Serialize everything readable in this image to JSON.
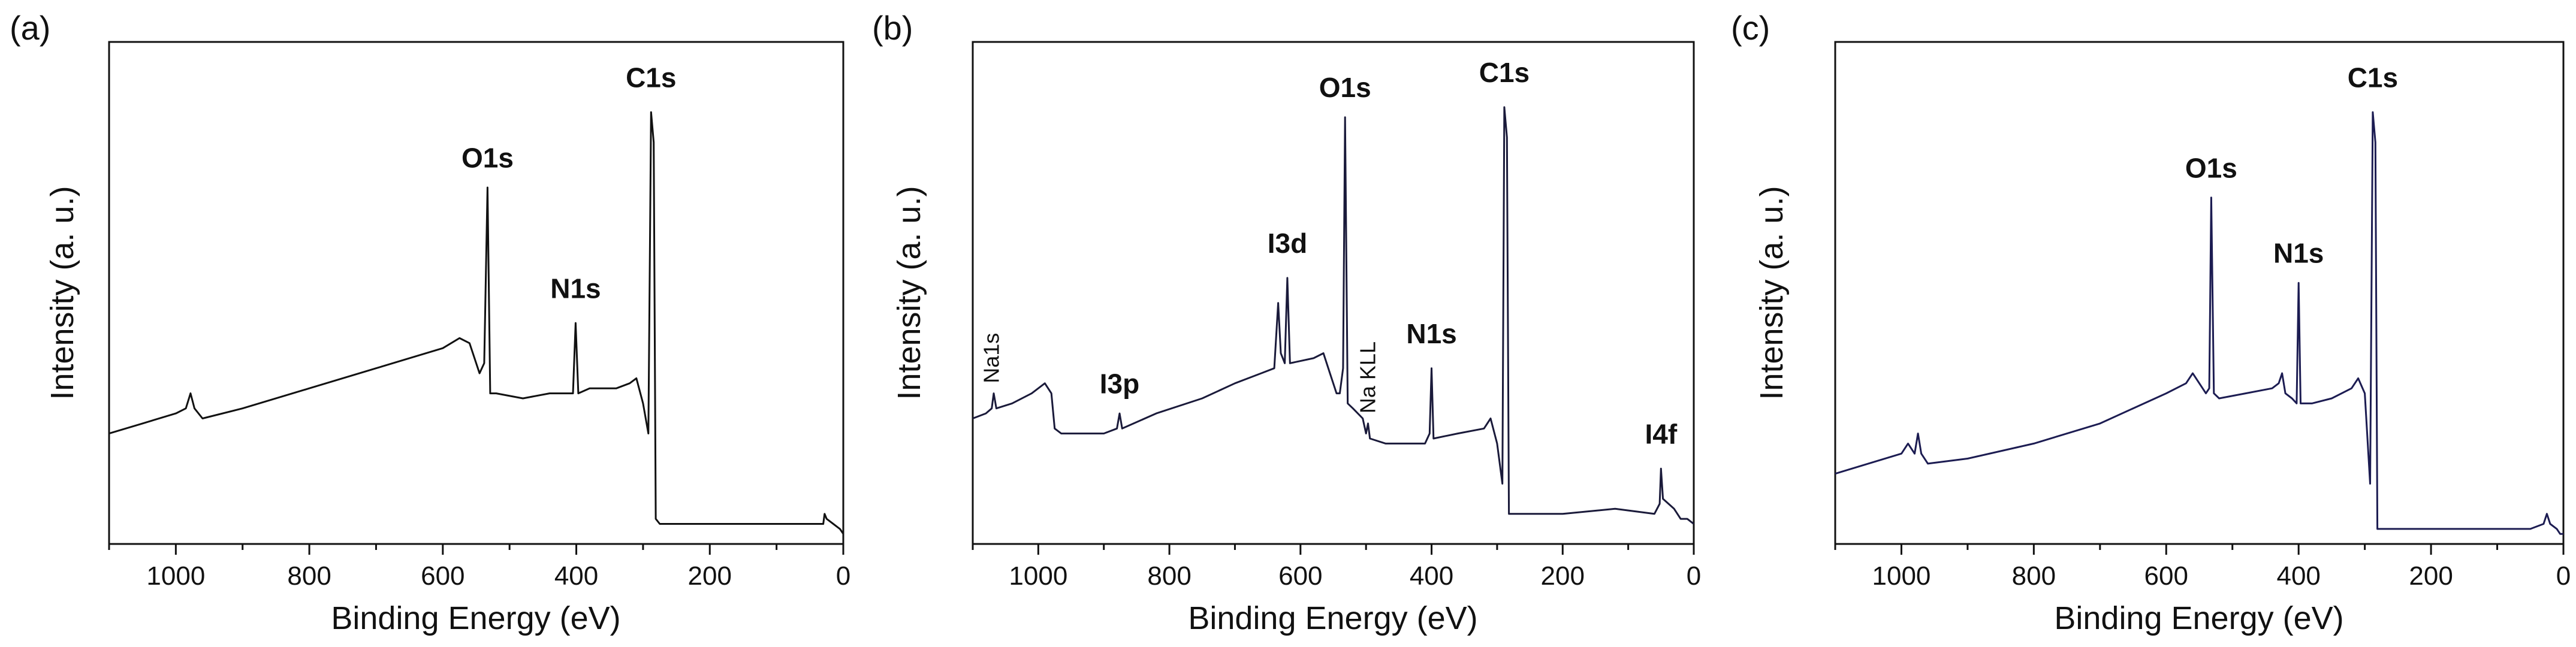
{
  "chart_data": [
    {
      "panel_label": "(a)",
      "type": "line",
      "xlabel": "Binding Energy (eV)",
      "ylabel": "Intensity (a. u.)",
      "xlim": [
        1100,
        0
      ],
      "x_reversed": true,
      "ylim": [
        0,
        100
      ],
      "y_ticks_shown": false,
      "xticks": [
        "1000",
        "800",
        "600",
        "400",
        "200",
        "0"
      ],
      "xtick_values": [
        1000,
        800,
        600,
        400,
        200,
        0
      ],
      "color": "#111111",
      "series": [
        {
          "name": "spectrum",
          "points": [
            [
              1100,
              22
            ],
            [
              1050,
              24
            ],
            [
              1000,
              26
            ],
            [
              985,
              27
            ],
            [
              978,
              30
            ],
            [
              972,
              27
            ],
            [
              960,
              25
            ],
            [
              900,
              27
            ],
            [
              800,
              31
            ],
            [
              700,
              35
            ],
            [
              650,
              37
            ],
            [
              600,
              39
            ],
            [
              575,
              41
            ],
            [
              560,
              40
            ],
            [
              545,
              34
            ],
            [
              538,
              36
            ],
            [
              533,
              71
            ],
            [
              529,
              30
            ],
            [
              520,
              30
            ],
            [
              480,
              29
            ],
            [
              440,
              30
            ],
            [
              420,
              30
            ],
            [
              405,
              30
            ],
            [
              401,
              44
            ],
            [
              397,
              30
            ],
            [
              380,
              31
            ],
            [
              340,
              31
            ],
            [
              320,
              32
            ],
            [
              310,
              33
            ],
            [
              300,
              28
            ],
            [
              292,
              22
            ],
            [
              288,
              86
            ],
            [
              284,
              80
            ],
            [
              281,
              5
            ],
            [
              275,
              4
            ],
            [
              200,
              4
            ],
            [
              100,
              4
            ],
            [
              30,
              4
            ],
            [
              28,
              6
            ],
            [
              25,
              5
            ],
            [
              15,
              4
            ],
            [
              5,
              3
            ],
            [
              0,
              2
            ]
          ]
        }
      ],
      "annotations": [
        {
          "text": "C1s",
          "x": 288,
          "y": 91,
          "bold": true
        },
        {
          "text": "O1s",
          "x": 533,
          "y": 75,
          "bold": true
        },
        {
          "text": "N1s",
          "x": 401,
          "y": 49,
          "bold": true
        }
      ]
    },
    {
      "panel_label": "(b)",
      "type": "line",
      "xlabel": "Binding Energy (eV)",
      "ylabel": "Intensity (a. u.)",
      "xlim": [
        1100,
        0
      ],
      "x_reversed": true,
      "ylim": [
        0,
        100
      ],
      "y_ticks_shown": false,
      "xticks": [
        "1000",
        "800",
        "600",
        "400",
        "200",
        "0"
      ],
      "xtick_values": [
        1000,
        800,
        600,
        400,
        200,
        0
      ],
      "color": "#1a1a3a",
      "series": [
        {
          "name": "spectrum",
          "points": [
            [
              1100,
              25
            ],
            [
              1080,
              26
            ],
            [
              1071,
              27
            ],
            [
              1068,
              30
            ],
            [
              1064,
              27
            ],
            [
              1040,
              28
            ],
            [
              1010,
              30
            ],
            [
              990,
              32
            ],
            [
              980,
              30
            ],
            [
              975,
              23
            ],
            [
              965,
              22
            ],
            [
              900,
              22
            ],
            [
              880,
              23
            ],
            [
              876,
              26
            ],
            [
              872,
              23
            ],
            [
              820,
              26
            ],
            [
              750,
              29
            ],
            [
              700,
              32
            ],
            [
              660,
              34
            ],
            [
              640,
              35
            ],
            [
              634,
              48
            ],
            [
              630,
              38
            ],
            [
              624,
              36
            ],
            [
              620,
              53
            ],
            [
              616,
              36
            ],
            [
              580,
              37
            ],
            [
              565,
              38
            ],
            [
              555,
              34
            ],
            [
              545,
              30
            ],
            [
              540,
              30
            ],
            [
              535,
              35
            ],
            [
              532,
              85
            ],
            [
              528,
              28
            ],
            [
              520,
              27
            ],
            [
              505,
              25
            ],
            [
              500,
              22
            ],
            [
              497,
              24
            ],
            [
              494,
              21
            ],
            [
              470,
              20
            ],
            [
              440,
              20
            ],
            [
              420,
              20
            ],
            [
              410,
              20
            ],
            [
              403,
              22
            ],
            [
              400,
              35
            ],
            [
              397,
              21
            ],
            [
              360,
              22
            ],
            [
              320,
              23
            ],
            [
              310,
              25
            ],
            [
              300,
              20
            ],
            [
              292,
              12
            ],
            [
              289,
              87
            ],
            [
              285,
              81
            ],
            [
              282,
              6
            ],
            [
              270,
              6
            ],
            [
              200,
              6
            ],
            [
              120,
              7
            ],
            [
              60,
              6
            ],
            [
              52,
              8
            ],
            [
              50,
              15
            ],
            [
              47,
              9
            ],
            [
              30,
              7
            ],
            [
              20,
              5
            ],
            [
              10,
              5
            ],
            [
              0,
              4
            ]
          ]
        }
      ],
      "annotations": [
        {
          "text": "C1s",
          "x": 289,
          "y": 92,
          "bold": true
        },
        {
          "text": "O1s",
          "x": 532,
          "y": 89,
          "bold": true
        },
        {
          "text": "I3d",
          "x": 620,
          "y": 58,
          "bold": true
        },
        {
          "text": "N1s",
          "x": 400,
          "y": 40,
          "bold": true
        },
        {
          "text": "I3p",
          "x": 876,
          "y": 30,
          "bold": true
        },
        {
          "text": "I4f",
          "x": 50,
          "y": 20,
          "bold": true
        },
        {
          "text": "Na1s",
          "x": 1071,
          "y": 32,
          "bold": false,
          "rotated": true
        },
        {
          "text": "Na KLL",
          "x": 497,
          "y": 26,
          "bold": false,
          "rotated": true
        }
      ]
    },
    {
      "panel_label": "(c)",
      "type": "line",
      "xlabel": "Binding Energy (eV)",
      "ylabel": "Intensity (a. u.)",
      "xlim": [
        1100,
        0
      ],
      "x_reversed": true,
      "ylim": [
        0,
        100
      ],
      "y_ticks_shown": false,
      "xticks": [
        "1000",
        "800",
        "600",
        "400",
        "200",
        "0"
      ],
      "xtick_values": [
        1000,
        800,
        600,
        400,
        200,
        0
      ],
      "color": "#1c1c52",
      "series": [
        {
          "name": "spectrum",
          "points": [
            [
              1100,
              14
            ],
            [
              1050,
              16
            ],
            [
              1000,
              18
            ],
            [
              990,
              20
            ],
            [
              980,
              18
            ],
            [
              975,
              22
            ],
            [
              970,
              18
            ],
            [
              960,
              16
            ],
            [
              900,
              17
            ],
            [
              800,
              20
            ],
            [
              700,
              24
            ],
            [
              650,
              27
            ],
            [
              600,
              30
            ],
            [
              570,
              32
            ],
            [
              560,
              34
            ],
            [
              550,
              32
            ],
            [
              540,
              30
            ],
            [
              535,
              31
            ],
            [
              532,
              69
            ],
            [
              528,
              30
            ],
            [
              520,
              29
            ],
            [
              480,
              30
            ],
            [
              440,
              31
            ],
            [
              430,
              32
            ],
            [
              425,
              34
            ],
            [
              420,
              30
            ],
            [
              410,
              29
            ],
            [
              403,
              28
            ],
            [
              400,
              52
            ],
            [
              397,
              28
            ],
            [
              380,
              28
            ],
            [
              350,
              29
            ],
            [
              320,
              31
            ],
            [
              310,
              33
            ],
            [
              300,
              30
            ],
            [
              292,
              12
            ],
            [
              288,
              86
            ],
            [
              284,
              80
            ],
            [
              281,
              3
            ],
            [
              270,
              3
            ],
            [
              200,
              3
            ],
            [
              100,
              3
            ],
            [
              50,
              3
            ],
            [
              30,
              4
            ],
            [
              25,
              6
            ],
            [
              20,
              4
            ],
            [
              10,
              3
            ],
            [
              5,
              2
            ],
            [
              0,
              2
            ]
          ]
        }
      ],
      "annotations": [
        {
          "text": "C1s",
          "x": 288,
          "y": 91,
          "bold": true
        },
        {
          "text": "O1s",
          "x": 532,
          "y": 73,
          "bold": true
        },
        {
          "text": "N1s",
          "x": 400,
          "y": 56,
          "bold": true
        }
      ]
    }
  ]
}
